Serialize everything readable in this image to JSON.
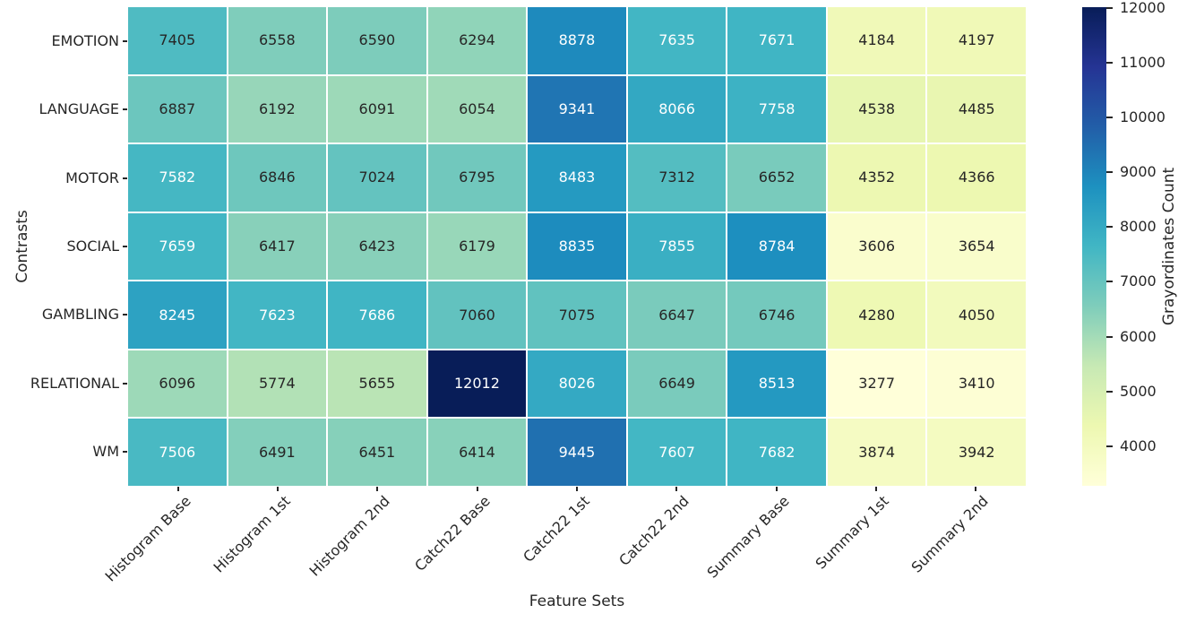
{
  "chart_data": {
    "type": "heatmap",
    "xlabel": "Feature Sets",
    "ylabel": "Contrasts",
    "colorbar_label": "Grayordinates Count",
    "rows": [
      "EMOTION",
      "LANGUAGE",
      "MOTOR",
      "SOCIAL",
      "GAMBLING",
      "RELATIONAL",
      "WM"
    ],
    "columns": [
      "Histogram Base",
      "Histogram 1st",
      "Histogram 2nd",
      "Catch22 Base",
      "Catch22 1st",
      "Catch22 2nd",
      "Summary Base",
      "Summary 1st",
      "Summary 2nd"
    ],
    "values": [
      [
        7405,
        6558,
        6590,
        6294,
        8878,
        7635,
        7671,
        4184,
        4197
      ],
      [
        6887,
        6192,
        6091,
        6054,
        9341,
        8066,
        7758,
        4538,
        4485
      ],
      [
        7582,
        6846,
        7024,
        6795,
        8483,
        7312,
        6652,
        4352,
        4366
      ],
      [
        7659,
        6417,
        6423,
        6179,
        8835,
        7855,
        8784,
        3606,
        3654
      ],
      [
        8245,
        7623,
        7686,
        7060,
        7075,
        6647,
        6746,
        4280,
        4050
      ],
      [
        6096,
        5774,
        5655,
        12012,
        8026,
        6649,
        8513,
        3277,
        3410
      ],
      [
        7506,
        6491,
        6451,
        6414,
        9445,
        7607,
        7682,
        3874,
        3942
      ]
    ],
    "vmin": 3277,
    "vmax": 12012,
    "colorbar_ticks": [
      4000,
      5000,
      6000,
      7000,
      8000,
      9000,
      10000,
      11000,
      12000
    ],
    "colormap": {
      "name": "YlGnBu",
      "stops": [
        [
          0.0,
          "#ffffd9"
        ],
        [
          0.125,
          "#edf8b1"
        ],
        [
          0.25,
          "#c7e9b4"
        ],
        [
          0.375,
          "#7fcdbb"
        ],
        [
          0.5,
          "#41b6c4"
        ],
        [
          0.625,
          "#1d91c0"
        ],
        [
          0.75,
          "#225ea8"
        ],
        [
          0.875,
          "#253494"
        ],
        [
          1.0,
          "#081d58"
        ]
      ]
    },
    "annotation_colors": {
      "light": "#ffffff",
      "dark": "#262626"
    },
    "grid_line_color": "#ffffff",
    "tick_color": "#262626"
  }
}
